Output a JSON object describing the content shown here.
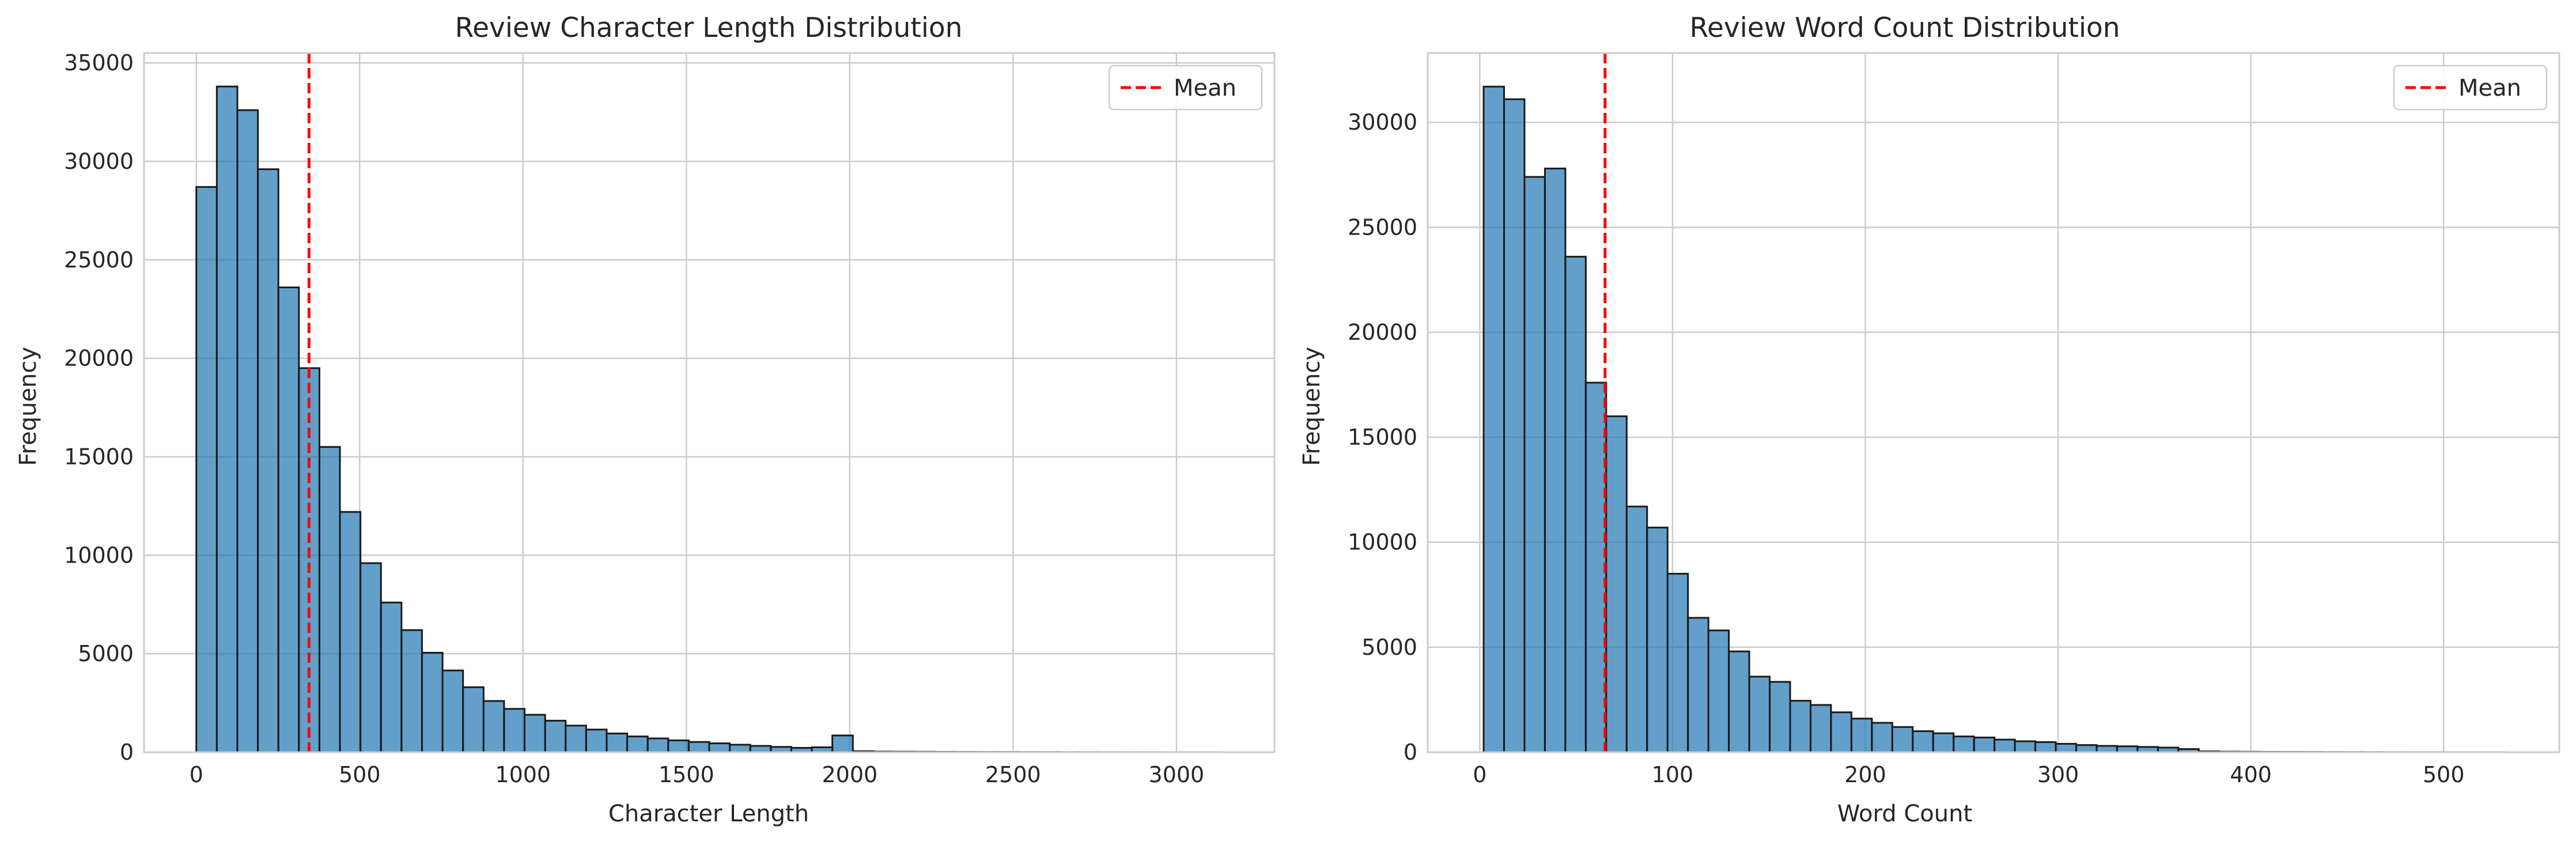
{
  "chart_data": [
    {
      "type": "bar",
      "title": "Review Character Length Distribution",
      "xlabel": "Character Length",
      "ylabel": "Frequency",
      "xlim": [
        -160,
        3300
      ],
      "ylim": [
        0,
        35500
      ],
      "xticks": [
        0,
        500,
        1000,
        1500,
        2000,
        2500,
        3000
      ],
      "yticks": [
        0,
        5000,
        10000,
        15000,
        20000,
        25000,
        30000,
        35000
      ],
      "grid": true,
      "bin_start": 0,
      "bin_width": 62.8,
      "values": [
        28700,
        33800,
        32600,
        29600,
        23600,
        19500,
        15500,
        12200,
        9600,
        7600,
        6200,
        5050,
        4150,
        3300,
        2600,
        2200,
        1900,
        1600,
        1350,
        1150,
        950,
        800,
        700,
        600,
        520,
        450,
        380,
        320,
        270,
        220,
        250,
        850,
        50,
        30,
        25,
        20,
        15,
        12,
        10,
        10,
        8,
        6,
        5,
        5,
        4,
        3,
        3,
        2,
        2,
        2
      ],
      "mean": 345,
      "legend": {
        "label": "Mean",
        "position": "top-right"
      },
      "colors": {
        "bar": "#1f77b4",
        "edge": "#1a1a1a",
        "mean": "#ff0000"
      }
    },
    {
      "type": "bar",
      "title": "Review Word Count Distribution",
      "xlabel": "Word Count",
      "ylabel": "Frequency",
      "xlim": [
        -27,
        560
      ],
      "ylim": [
        0,
        33300
      ],
      "xticks": [
        0,
        100,
        200,
        300,
        400,
        500
      ],
      "yticks": [
        0,
        5000,
        10000,
        15000,
        20000,
        25000,
        30000
      ],
      "grid": true,
      "bin_start": 2,
      "bin_width": 10.6,
      "values": [
        31700,
        31100,
        27400,
        27800,
        23600,
        17600,
        16000,
        11700,
        10700,
        8500,
        6400,
        5800,
        4800,
        3600,
        3350,
        2450,
        2250,
        1900,
        1600,
        1400,
        1200,
        1000,
        900,
        750,
        700,
        600,
        520,
        480,
        400,
        340,
        300,
        280,
        250,
        220,
        150,
        40,
        25,
        20,
        15,
        12,
        10,
        8,
        6,
        5,
        4,
        3,
        3,
        2,
        2,
        2
      ],
      "mean": 65,
      "legend": {
        "label": "Mean",
        "position": "top-right"
      },
      "colors": {
        "bar": "#1f77b4",
        "edge": "#1a1a1a",
        "mean": "#ff0000"
      }
    }
  ]
}
